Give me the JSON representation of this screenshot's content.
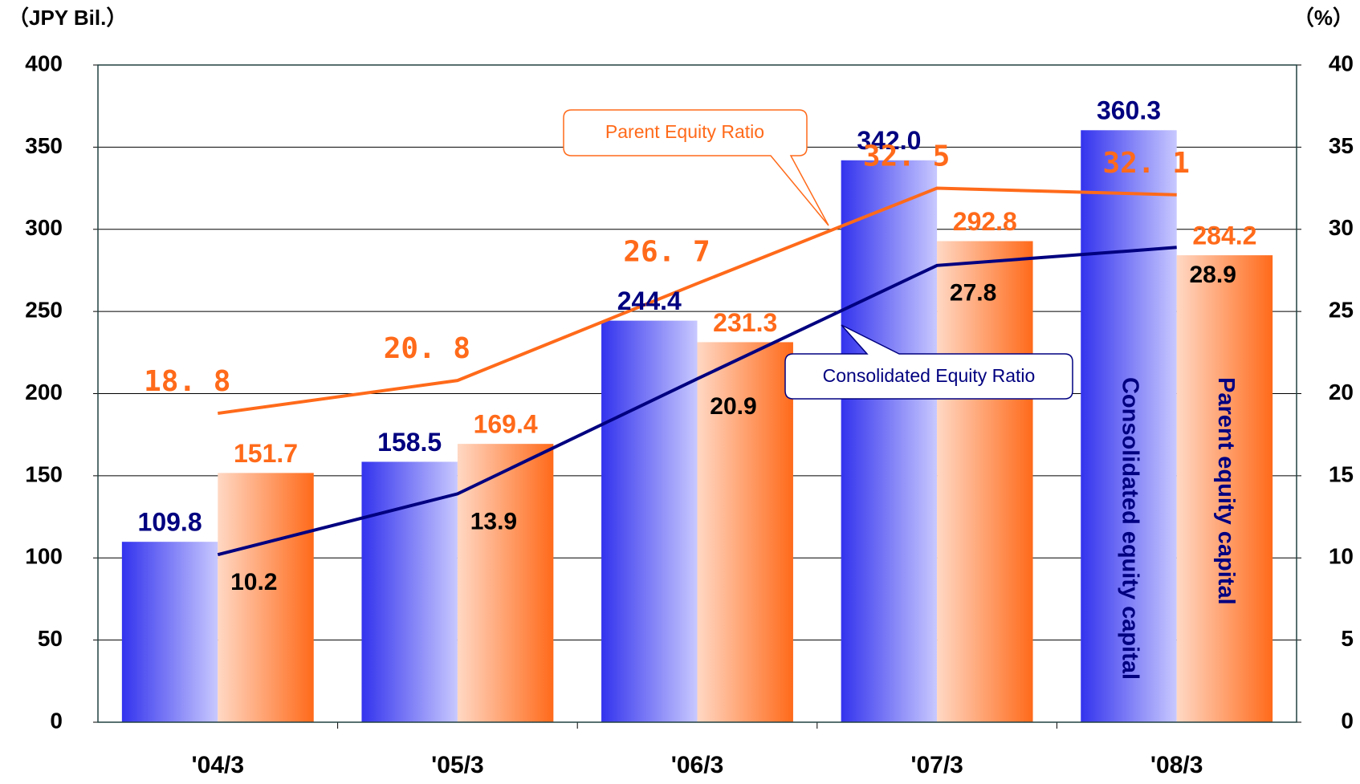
{
  "chart_data": {
    "type": "bar",
    "y_label": "（JPY Bil.）",
    "y2_label": "（%）",
    "categories": [
      "'04/3",
      "'05/3",
      "'06/3",
      "'07/3",
      "'08/3"
    ],
    "series": [
      {
        "name": "Consolidated equity capital",
        "color": "#3333ee",
        "values": [
          109.8,
          158.5,
          244.4,
          342.0,
          360.3
        ],
        "value_labels": [
          "109.8",
          "158.5",
          "244.4",
          "342.0",
          "360.3"
        ]
      },
      {
        "name": "Parent equity capital",
        "color": "#ff6a1a",
        "values": [
          151.7,
          169.4,
          231.3,
          292.8,
          284.2
        ]
      },
      {
        "name": "Consolidated Equity Ratio",
        "type": "line",
        "axis": "y2",
        "color": "#000080",
        "values": [
          10.2,
          13.9,
          20.9,
          27.8,
          28.9
        ]
      },
      {
        "name": "Parent Equity Ratio",
        "type": "line",
        "axis": "y2",
        "color": "#ff6a1a",
        "values": [
          18.8,
          20.8,
          26.7,
          32.5,
          32.1
        ],
        "value_labels": [
          "18. 8",
          "20. 8",
          "26. 7",
          "32. 5",
          "32. 1"
        ]
      }
    ],
    "ylim": [
      0,
      400
    ],
    "yticks": [
      0,
      50,
      100,
      150,
      200,
      250,
      300,
      350,
      400
    ],
    "y2lim": [
      0,
      40
    ],
    "y2ticks": [
      0,
      5,
      10,
      15,
      20,
      25,
      30,
      35,
      40
    ],
    "grid": true
  }
}
